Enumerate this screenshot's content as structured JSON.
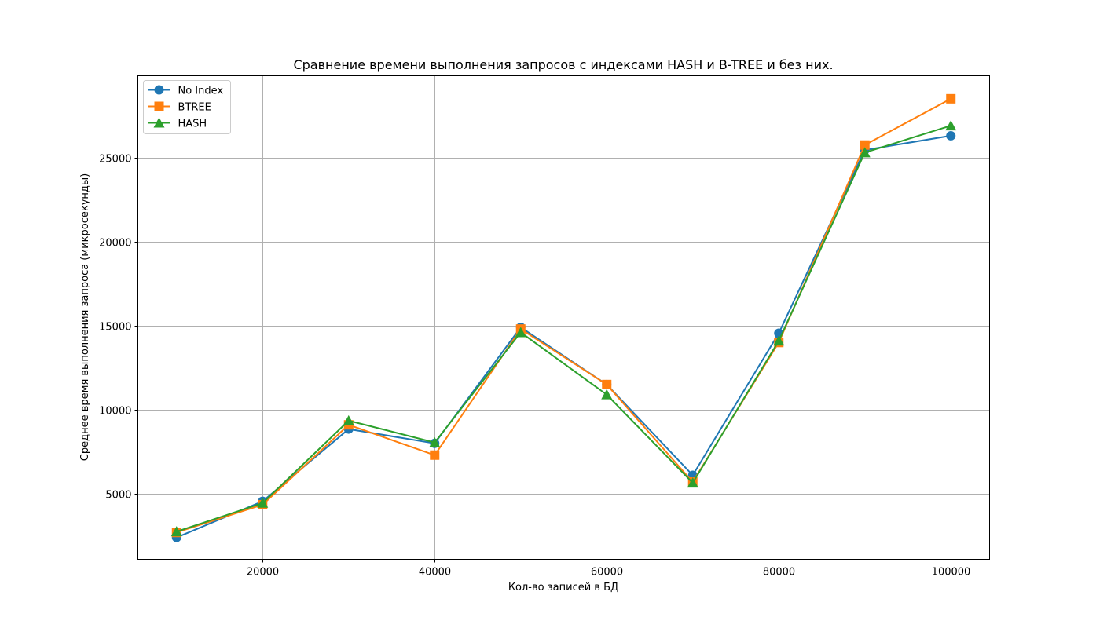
{
  "chart_data": {
    "type": "line",
    "title": "Сравнение времени выполнения запросов с индексами HASH и B-TREE и без них.",
    "xlabel": "Кол-во записей в БД",
    "ylabel": "Среднее время выполнения запроса (микросекунды)",
    "x": [
      10000,
      20000,
      30000,
      40000,
      50000,
      60000,
      70000,
      80000,
      90000,
      100000
    ],
    "xlim": [
      5500,
      104500
    ],
    "ylim": [
      1100,
      29870
    ],
    "xticks": [
      20000,
      40000,
      60000,
      80000,
      100000
    ],
    "yticks": [
      5000,
      10000,
      15000,
      20000,
      25000
    ],
    "grid": true,
    "legend_position": "top-left",
    "series": [
      {
        "name": "No Index",
        "color": "#1f77b4",
        "marker": "circle",
        "values": [
          2400,
          4550,
          8850,
          8000,
          14900,
          11500,
          6100,
          14550,
          25450,
          26300
        ]
      },
      {
        "name": "BTREE",
        "color": "#ff7f0e",
        "marker": "square",
        "values": [
          2700,
          4350,
          9100,
          7300,
          14800,
          11500,
          5700,
          14000,
          25750,
          28500
        ]
      },
      {
        "name": "HASH",
        "color": "#2ca02c",
        "marker": "triangle",
        "values": [
          2750,
          4450,
          9350,
          8050,
          14600,
          10900,
          5650,
          14100,
          25300,
          26900
        ]
      }
    ]
  }
}
